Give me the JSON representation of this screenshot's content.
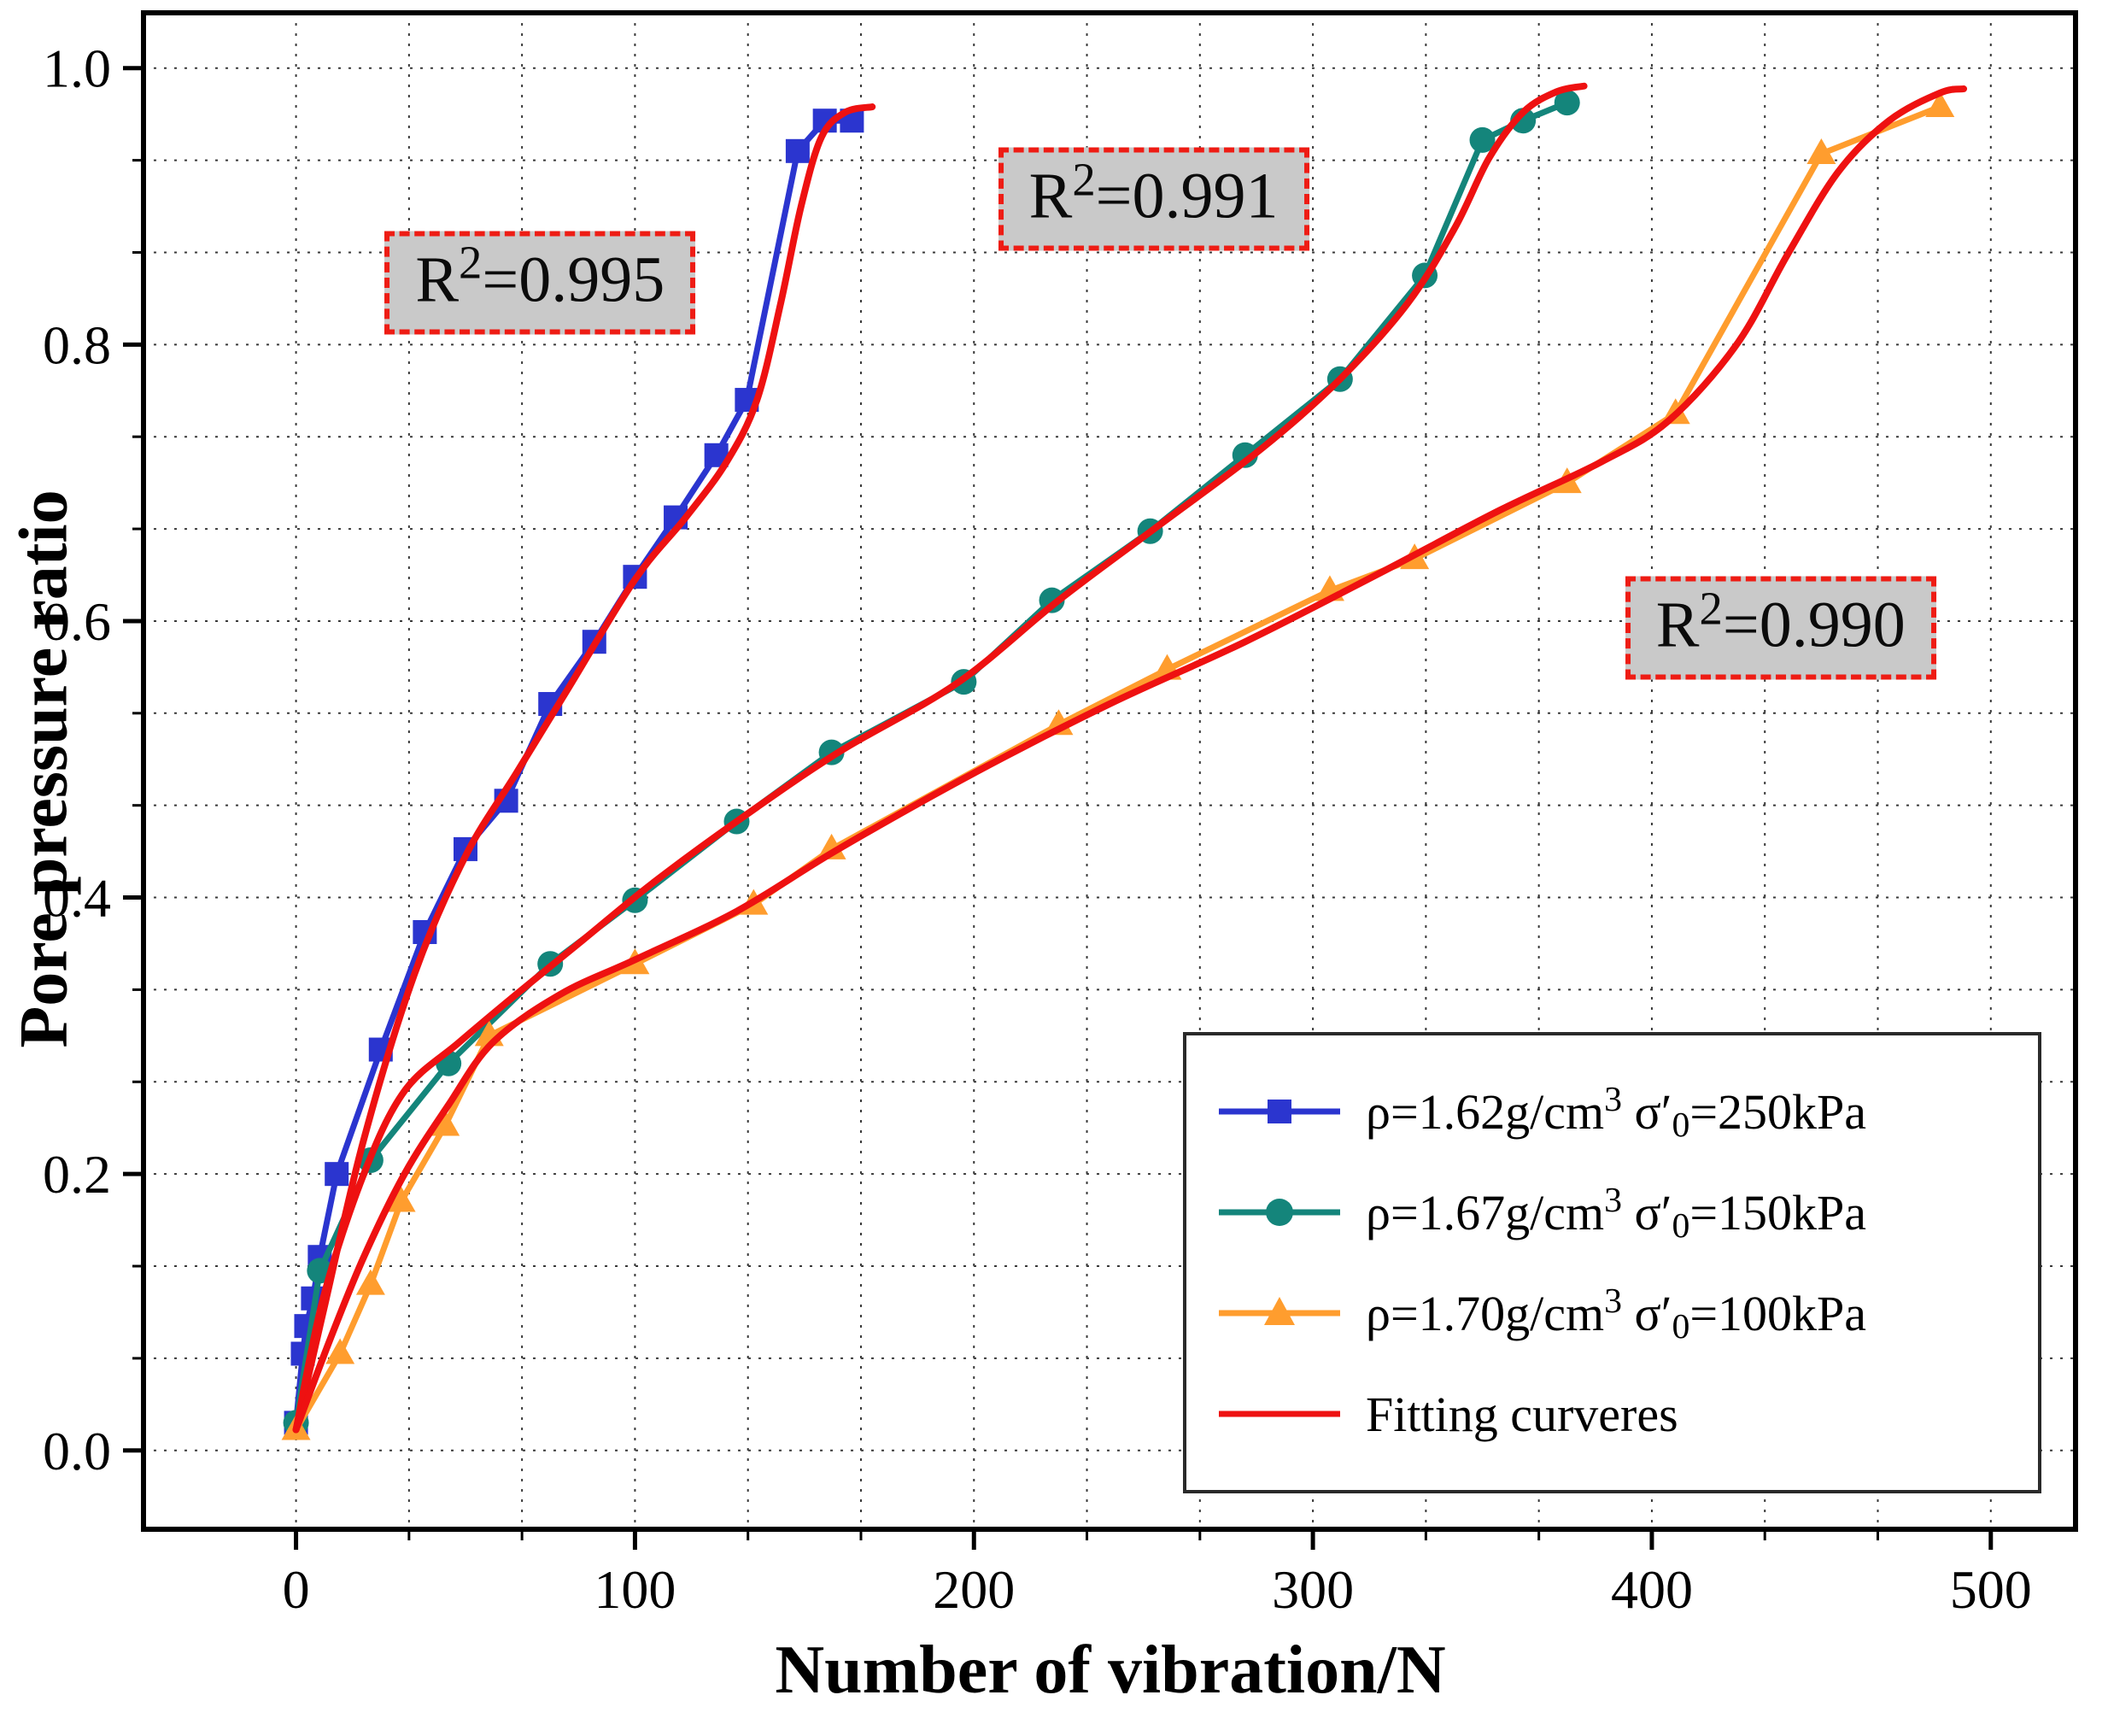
{
  "chart_data": {
    "type": "line",
    "title": "",
    "xlabel": "Number of vibration/N",
    "ylabel": "Pore pressure ratio",
    "xlim": [
      -45,
      525
    ],
    "ylim": [
      -0.057,
      1.04
    ],
    "xticks": [
      0,
      100,
      200,
      300,
      400,
      500
    ],
    "yticks": [
      0.0,
      0.2,
      0.4,
      0.6,
      0.8,
      1.0
    ],
    "grid": {
      "on": true,
      "style": "dotted",
      "x_minor_divisions": 3,
      "y_minor_divisions": 3,
      "color": "#3a3a3a"
    },
    "frame_color": "#000000",
    "series": [
      {
        "name": "rho=1.62g/cm3, sigma'0=250kPa",
        "marker": "square",
        "color": "#2b35cf",
        "points": [
          [
            0,
            0.02
          ],
          [
            2,
            0.07
          ],
          [
            3,
            0.09
          ],
          [
            5,
            0.11
          ],
          [
            7,
            0.14
          ],
          [
            12,
            0.2
          ],
          [
            25,
            0.29
          ],
          [
            38,
            0.375
          ],
          [
            50,
            0.435
          ],
          [
            62,
            0.47
          ],
          [
            75,
            0.54
          ],
          [
            88,
            0.585
          ],
          [
            100,
            0.632
          ],
          [
            112,
            0.675
          ],
          [
            124,
            0.72
          ],
          [
            133,
            0.76
          ],
          [
            148,
            0.94
          ],
          [
            156,
            0.962
          ],
          [
            164,
            0.962
          ]
        ]
      },
      {
        "name": "rho=1.67g/cm3, sigma'0=150kPa",
        "marker": "circle",
        "color": "#14857b",
        "points": [
          [
            0,
            0.02
          ],
          [
            7,
            0.13
          ],
          [
            22,
            0.21
          ],
          [
            45,
            0.28
          ],
          [
            75,
            0.352
          ],
          [
            100,
            0.398
          ],
          [
            130,
            0.455
          ],
          [
            158,
            0.505
          ],
          [
            197,
            0.556
          ],
          [
            223,
            0.615
          ],
          [
            252,
            0.665
          ],
          [
            280,
            0.72
          ],
          [
            308,
            0.775
          ],
          [
            333,
            0.85
          ],
          [
            350,
            0.948
          ],
          [
            362,
            0.962
          ],
          [
            375,
            0.975
          ]
        ]
      },
      {
        "name": "rho=1.70g/cm3, sigma'0=100kPa",
        "marker": "triangle",
        "color": "#ff9d2e",
        "points": [
          [
            0,
            0.015
          ],
          [
            13,
            0.07
          ],
          [
            22,
            0.12
          ],
          [
            31,
            0.18
          ],
          [
            44,
            0.235
          ],
          [
            57,
            0.3
          ],
          [
            100,
            0.352
          ],
          [
            135,
            0.395
          ],
          [
            158,
            0.435
          ],
          [
            225,
            0.525
          ],
          [
            257,
            0.565
          ],
          [
            305,
            0.622
          ],
          [
            330,
            0.645
          ],
          [
            375,
            0.7
          ],
          [
            407,
            0.75
          ],
          [
            450,
            0.938
          ],
          [
            485,
            0.972
          ]
        ]
      }
    ],
    "fit": {
      "name": "Fitting curveres",
      "color": "#ee1111",
      "curves": [
        [
          [
            0,
            0.015
          ],
          [
            8,
            0.1
          ],
          [
            20,
            0.225
          ],
          [
            35,
            0.345
          ],
          [
            50,
            0.43
          ],
          [
            65,
            0.49
          ],
          [
            80,
            0.55
          ],
          [
            100,
            0.63
          ],
          [
            115,
            0.675
          ],
          [
            127,
            0.715
          ],
          [
            136,
            0.76
          ],
          [
            143,
            0.83
          ],
          [
            149,
            0.9
          ],
          [
            155,
            0.95
          ],
          [
            162,
            0.968
          ],
          [
            170,
            0.972
          ]
        ],
        [
          [
            0,
            0.015
          ],
          [
            8,
            0.11
          ],
          [
            20,
            0.2
          ],
          [
            32,
            0.26
          ],
          [
            48,
            0.295
          ],
          [
            65,
            0.33
          ],
          [
            85,
            0.37
          ],
          [
            105,
            0.41
          ],
          [
            130,
            0.455
          ],
          [
            160,
            0.505
          ],
          [
            195,
            0.555
          ],
          [
            225,
            0.615
          ],
          [
            255,
            0.67
          ],
          [
            285,
            0.725
          ],
          [
            308,
            0.775
          ],
          [
            328,
            0.83
          ],
          [
            342,
            0.885
          ],
          [
            352,
            0.935
          ],
          [
            362,
            0.968
          ],
          [
            372,
            0.983
          ],
          [
            380,
            0.987
          ]
        ],
        [
          [
            0,
            0.015
          ],
          [
            10,
            0.08
          ],
          [
            20,
            0.14
          ],
          [
            32,
            0.2
          ],
          [
            45,
            0.25
          ],
          [
            58,
            0.295
          ],
          [
            78,
            0.33
          ],
          [
            100,
            0.355
          ],
          [
            130,
            0.39
          ],
          [
            160,
            0.435
          ],
          [
            200,
            0.49
          ],
          [
            240,
            0.54
          ],
          [
            280,
            0.585
          ],
          [
            320,
            0.635
          ],
          [
            355,
            0.68
          ],
          [
            385,
            0.715
          ],
          [
            405,
            0.745
          ],
          [
            425,
            0.8
          ],
          [
            440,
            0.865
          ],
          [
            455,
            0.925
          ],
          [
            470,
            0.962
          ],
          [
            485,
            0.982
          ],
          [
            492,
            0.985
          ]
        ]
      ]
    },
    "annotations": [
      {
        "x": 72,
        "y": 0.845,
        "parts": [
          [
            "t",
            "R"
          ],
          [
            "sup",
            "2"
          ],
          [
            "t",
            "=0.995"
          ]
        ]
      },
      {
        "x": 253,
        "y": 0.905,
        "parts": [
          [
            "t",
            "R"
          ],
          [
            "sup",
            "2"
          ],
          [
            "t",
            "=0.991"
          ]
        ]
      },
      {
        "x": 438,
        "y": 0.595,
        "parts": [
          [
            "t",
            "R"
          ],
          [
            "sup",
            "2"
          ],
          [
            "t",
            "=0.990"
          ]
        ]
      }
    ],
    "legend": {
      "position": "inside lower right",
      "entries": [
        {
          "marker": "square",
          "color": "#2b35cf",
          "parts": [
            [
              "t",
              "ρ=1.62g/cm"
            ],
            [
              "sup",
              "3"
            ],
            [
              "t",
              "  σ′"
            ],
            [
              "sub",
              "0"
            ],
            [
              "t",
              "=250kPa"
            ]
          ]
        },
        {
          "marker": "circle",
          "color": "#14857b",
          "parts": [
            [
              "t",
              "ρ=1.67g/cm"
            ],
            [
              "sup",
              "3"
            ],
            [
              "t",
              "  σ′"
            ],
            [
              "sub",
              "0"
            ],
            [
              "t",
              "=150kPa"
            ]
          ]
        },
        {
          "marker": "triangle",
          "color": "#ff9d2e",
          "parts": [
            [
              "t",
              "ρ=1.70g/cm"
            ],
            [
              "sup",
              "3"
            ],
            [
              "t",
              "  σ′"
            ],
            [
              "sub",
              "0"
            ],
            [
              "t",
              "=100kPa"
            ]
          ]
        },
        {
          "marker": "line",
          "color": "#ee1111",
          "parts": [
            [
              "t",
              "Fitting curveres"
            ]
          ]
        }
      ]
    }
  }
}
